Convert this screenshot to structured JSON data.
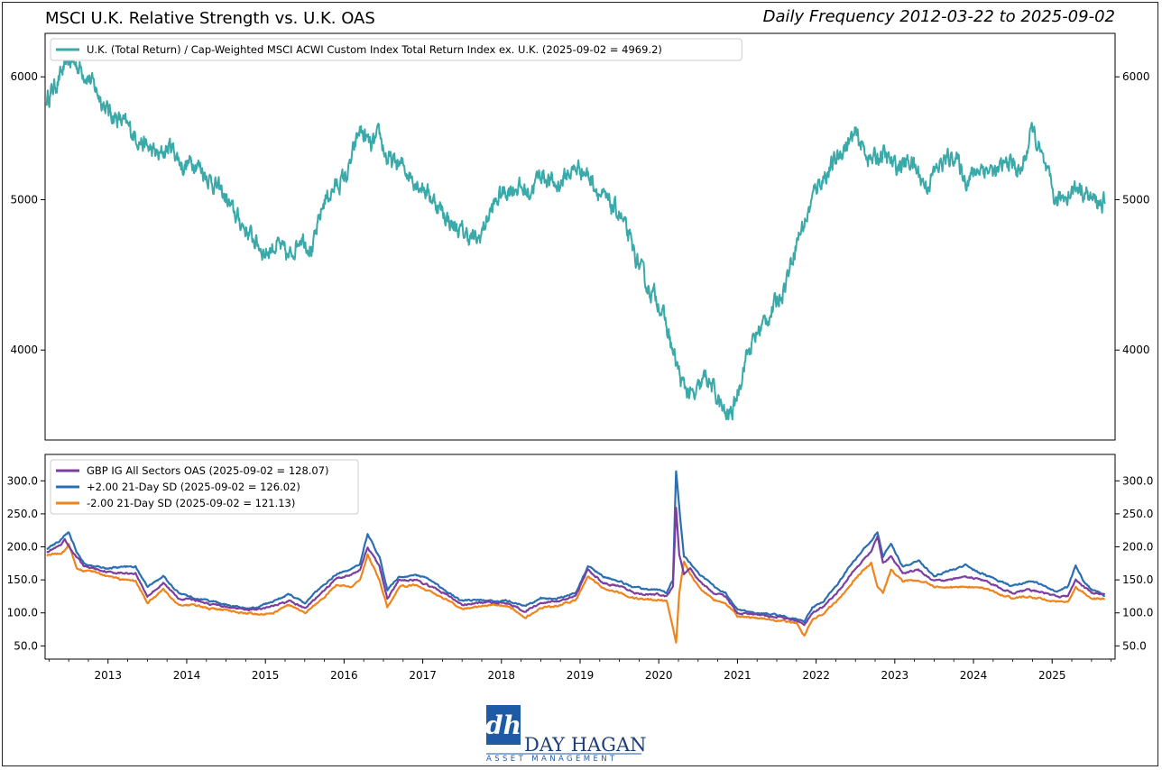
{
  "header": {
    "title": "MSCI U.K. Relative Strength vs. U.K. OAS",
    "subtitle": "Daily Frequency 2012-03-22 to 2025-09-02"
  },
  "logo": {
    "name": "DAY HAGAN",
    "tagline": "ASSET MANAGEMENT",
    "mark": "dh"
  },
  "colors": {
    "teal": "#3aa9a9",
    "purple": "#7b3fa0",
    "blue": "#2b6fb0",
    "orange": "#f0841c"
  },
  "chart_data": [
    {
      "type": "line",
      "scale": "log",
      "title": "MSCI U.K. Relative Strength",
      "ylim": [
        3500,
        6400
      ],
      "yticks": [
        4000,
        5000,
        6000
      ],
      "yticklabels": [
        "4000",
        "5000",
        "6000"
      ],
      "series": [
        {
          "name": "U.K. (Total Return) / Cap-Weighted MSCI ACWI Custom Index Total Return Index ex. U.K. (2025-09-02 = 4969.2)",
          "color": "#3aa9a9",
          "x": [
            2012.22,
            2012.35,
            2012.5,
            2012.62,
            2012.75,
            2013.0,
            2013.2,
            2013.35,
            2013.5,
            2013.65,
            2013.8,
            2013.95,
            2014.1,
            2014.3,
            2014.45,
            2014.6,
            2014.8,
            2015.0,
            2015.15,
            2015.3,
            2015.45,
            2015.6,
            2015.75,
            2015.9,
            2016.05,
            2016.2,
            2016.35,
            2016.45,
            2016.55,
            2016.75,
            2016.9,
            2017.0,
            2017.2,
            2017.4,
            2017.55,
            2017.7,
            2017.85,
            2018.0,
            2018.2,
            2018.35,
            2018.5,
            2018.7,
            2018.85,
            2019.0,
            2019.15,
            2019.3,
            2019.5,
            2019.7,
            2019.85,
            2020.0,
            2020.12,
            2020.2,
            2020.3,
            2020.45,
            2020.6,
            2020.75,
            2020.85,
            2020.95,
            2021.05,
            2021.1,
            2021.25,
            2021.45,
            2021.6,
            2021.75,
            2021.9,
            2022.0,
            2022.2,
            2022.35,
            2022.5,
            2022.7,
            2022.85,
            2023.0,
            2023.2,
            2023.4,
            2023.55,
            2023.75,
            2023.9,
            2024.1,
            2024.3,
            2024.45,
            2024.6,
            2024.75,
            2024.9,
            2025.05,
            2025.2,
            2025.35,
            2025.5,
            2025.67
          ],
          "y": [
            5800,
            5950,
            6150,
            6100,
            6000,
            5700,
            5600,
            5500,
            5400,
            5330,
            5420,
            5250,
            5300,
            5150,
            5050,
            4900,
            4750,
            4620,
            4680,
            4580,
            4750,
            4640,
            5000,
            5100,
            5200,
            5550,
            5400,
            5500,
            5300,
            5250,
            5150,
            5100,
            4950,
            4800,
            4750,
            4700,
            4900,
            5050,
            5100,
            5050,
            5200,
            5100,
            5200,
            5250,
            5150,
            5000,
            4900,
            4600,
            4400,
            4300,
            4100,
            3950,
            3800,
            3720,
            3850,
            3720,
            3620,
            3660,
            3850,
            3950,
            4100,
            4250,
            4400,
            4700,
            4900,
            5100,
            5250,
            5400,
            5500,
            5300,
            5350,
            5250,
            5300,
            5100,
            5250,
            5350,
            5150,
            5250,
            5200,
            5300,
            5200,
            5550,
            5250,
            4980,
            5050,
            5100,
            5000,
            4969.2
          ]
        }
      ]
    },
    {
      "type": "line",
      "title": "U.K. OAS",
      "ylim": [
        30,
        340
      ],
      "yticks": [
        50,
        100,
        150,
        200,
        250,
        300
      ],
      "yticklabels": [
        "50.0",
        "100.0",
        "150.0",
        "200.0",
        "250.0",
        "300.0"
      ],
      "xlim": [
        2012.2,
        2025.8
      ],
      "xticks": [
        2013,
        2014,
        2015,
        2016,
        2017,
        2018,
        2019,
        2020,
        2021,
        2022,
        2023,
        2024,
        2025
      ],
      "xticklabels": [
        "2013",
        "2014",
        "2015",
        "2016",
        "2017",
        "2018",
        "2019",
        "2020",
        "2021",
        "2022",
        "2023",
        "2024",
        "2025"
      ],
      "x": [
        2012.22,
        2012.4,
        2012.45,
        2012.5,
        2012.6,
        2012.7,
        2012.8,
        2013.0,
        2013.2,
        2013.35,
        2013.5,
        2013.7,
        2013.9,
        2014.1,
        2014.3,
        2014.5,
        2014.7,
        2014.9,
        2015.1,
        2015.3,
        2015.5,
        2015.7,
        2015.9,
        2016.1,
        2016.2,
        2016.3,
        2016.45,
        2016.55,
        2016.7,
        2016.9,
        2017.1,
        2017.3,
        2017.5,
        2017.7,
        2017.9,
        2018.1,
        2018.3,
        2018.5,
        2018.7,
        2018.85,
        2018.95,
        2019.1,
        2019.3,
        2019.5,
        2019.7,
        2019.85,
        2020.0,
        2020.1,
        2020.18,
        2020.22,
        2020.26,
        2020.32,
        2020.4,
        2020.5,
        2020.7,
        2020.85,
        2021.0,
        2021.2,
        2021.4,
        2021.6,
        2021.75,
        2021.85,
        2021.95,
        2022.1,
        2022.3,
        2022.45,
        2022.6,
        2022.7,
        2022.78,
        2022.85,
        2022.95,
        2023.1,
        2023.3,
        2023.5,
        2023.7,
        2023.9,
        2024.1,
        2024.3,
        2024.5,
        2024.7,
        2024.9,
        2025.05,
        2025.2,
        2025.3,
        2025.4,
        2025.5,
        2025.67
      ],
      "series": [
        {
          "name": "GBP IG All Sectors OAS (2025-09-02 = 128.07)",
          "color": "#7b3fa0",
          "y": [
            193,
            202,
            210,
            200,
            185,
            170,
            168,
            162,
            160,
            160,
            125,
            145,
            122,
            120,
            113,
            110,
            106,
            105,
            110,
            118,
            107,
            128,
            152,
            158,
            165,
            200,
            170,
            122,
            150,
            150,
            140,
            128,
            112,
            115,
            116,
            115,
            102,
            115,
            118,
            122,
            128,
            165,
            145,
            140,
            130,
            128,
            128,
            125,
            140,
            260,
            190,
            160,
            168,
            150,
            130,
            125,
            100,
            98,
            95,
            92,
            88,
            82,
            100,
            110,
            135,
            160,
            180,
            195,
            215,
            175,
            185,
            160,
            165,
            148,
            150,
            155,
            150,
            140,
            130,
            135,
            130,
            125,
            125,
            150,
            140,
            130,
            128.07
          ]
        },
        {
          "name": "+2.00 21-Day SD (2025-09-02 = 126.02)",
          "color": "#2b6fb0",
          "y": [
            198,
            210,
            218,
            222,
            193,
            175,
            172,
            168,
            170,
            170,
            140,
            155,
            130,
            122,
            118,
            112,
            108,
            108,
            118,
            128,
            115,
            138,
            158,
            168,
            175,
            220,
            185,
            135,
            155,
            158,
            150,
            132,
            118,
            120,
            118,
            118,
            110,
            122,
            122,
            126,
            132,
            170,
            155,
            148,
            138,
            135,
            135,
            130,
            150,
            315,
            260,
            185,
            175,
            160,
            140,
            130,
            105,
            100,
            98,
            95,
            90,
            86,
            108,
            118,
            148,
            175,
            195,
            210,
            222,
            185,
            205,
            170,
            180,
            155,
            165,
            172,
            160,
            150,
            140,
            148,
            142,
            132,
            140,
            172,
            148,
            135,
            126.02
          ]
        },
        {
          "name": "-2.00 21-Day SD (2025-09-02 = 121.13)",
          "color": "#f0841c",
          "y": [
            188,
            190,
            195,
            205,
            168,
            163,
            163,
            155,
            150,
            148,
            115,
            135,
            112,
            112,
            106,
            104,
            100,
            98,
            100,
            112,
            100,
            118,
            142,
            140,
            150,
            188,
            150,
            108,
            140,
            142,
            133,
            120,
            106,
            110,
            112,
            110,
            92,
            108,
            110,
            116,
            120,
            155,
            138,
            130,
            122,
            120,
            120,
            118,
            78,
            55,
            130,
            178,
            160,
            140,
            120,
            115,
            95,
            93,
            90,
            88,
            84,
            65,
            90,
            100,
            122,
            145,
            165,
            175,
            140,
            130,
            165,
            148,
            150,
            140,
            138,
            140,
            138,
            130,
            122,
            125,
            120,
            118,
            115,
            138,
            130,
            122,
            121.13
          ]
        }
      ]
    }
  ]
}
